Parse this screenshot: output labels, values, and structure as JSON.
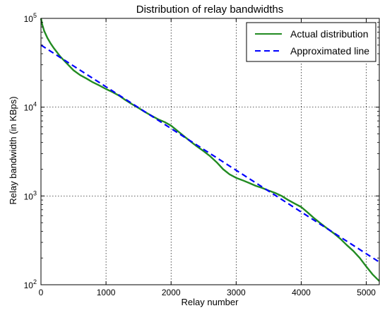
{
  "chart_data": {
    "type": "line",
    "title": "Distribution of relay bandwidths",
    "xlabel": "Relay number",
    "ylabel": "Relay bandwidth (in KBps)",
    "xlim": [
      0,
      5200
    ],
    "ylim": [
      100,
      100000
    ],
    "yscale": "log",
    "grid": true,
    "legend_position": "top-right",
    "x_ticks": [
      {
        "value": 0,
        "label": "0"
      },
      {
        "value": 1000,
        "label": "1000"
      },
      {
        "value": 2000,
        "label": "2000"
      },
      {
        "value": 3000,
        "label": "3000"
      },
      {
        "value": 4000,
        "label": "4000"
      },
      {
        "value": 5000,
        "label": "5000"
      }
    ],
    "y_ticks": [
      {
        "value": 100,
        "base": "10",
        "exp": "2"
      },
      {
        "value": 1000,
        "base": "10",
        "exp": "3"
      },
      {
        "value": 10000,
        "base": "10",
        "exp": "4"
      },
      {
        "value": 100000,
        "base": "10",
        "exp": "5"
      }
    ],
    "series": [
      {
        "name": "Actual distribution",
        "color": "#228B22",
        "style": "solid",
        "x": [
          0,
          20,
          50,
          100,
          150,
          200,
          300,
          400,
          500,
          600,
          700,
          800,
          900,
          1000,
          1100,
          1200,
          1300,
          1400,
          1500,
          1600,
          1700,
          1800,
          1900,
          2000,
          2100,
          2200,
          2300,
          2400,
          2500,
          2600,
          2700,
          2800,
          2900,
          3000,
          3100,
          3200,
          3300,
          3400,
          3500,
          3600,
          3700,
          3800,
          3900,
          4000,
          4100,
          4200,
          4300,
          4400,
          4500,
          4600,
          4700,
          4800,
          4900,
          5000,
          5100,
          5200
        ],
        "y": [
          100000,
          85000,
          72000,
          60000,
          52000,
          46000,
          37000,
          31000,
          26000,
          23000,
          21000,
          19000,
          17500,
          16000,
          14800,
          13500,
          12000,
          10800,
          9800,
          8800,
          8000,
          7300,
          6800,
          6200,
          5400,
          4700,
          4100,
          3600,
          3200,
          2800,
          2400,
          2000,
          1750,
          1600,
          1500,
          1400,
          1300,
          1230,
          1150,
          1080,
          1000,
          900,
          820,
          750,
          650,
          560,
          490,
          430,
          380,
          330,
          280,
          240,
          200,
          160,
          130,
          110
        ]
      },
      {
        "name": "Approximated line",
        "color": "#0000FF",
        "style": "dashed",
        "x": [
          0,
          5200
        ],
        "y": [
          50000,
          180
        ]
      }
    ]
  }
}
